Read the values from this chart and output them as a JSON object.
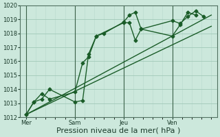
{
  "xlabel": "Pression niveau de la mer( hPa )",
  "bg_color": "#cce8dc",
  "grid_color_major": "#a0c8b8",
  "grid_color_minor": "#b8d8cc",
  "line_color": "#1a5c28",
  "vline_color": "#3a6048",
  "ylim": [
    1012,
    1020
  ],
  "yticks": [
    1012,
    1013,
    1014,
    1015,
    1016,
    1017,
    1018,
    1019,
    1020
  ],
  "day_labels": [
    "Mer",
    "Sam",
    "Jeu",
    "Ven"
  ],
  "day_positions": [
    0,
    2.5,
    5.0,
    7.5
  ],
  "xlim": [
    -0.3,
    9.8
  ],
  "series1_x": [
    0.0,
    0.4,
    0.8,
    1.2,
    2.5,
    2.9,
    3.2,
    3.6,
    5.0,
    5.3,
    5.6,
    5.9,
    7.5,
    7.9,
    8.3,
    8.7,
    9.1
  ],
  "series1_y": [
    1012.2,
    1013.1,
    1013.7,
    1013.3,
    1013.8,
    1015.9,
    1016.3,
    1017.8,
    1018.75,
    1018.75,
    1017.5,
    1018.3,
    1018.9,
    1018.7,
    1019.2,
    1019.6,
    1019.2
  ],
  "series2_x": [
    0.0,
    0.4,
    0.8,
    1.2,
    2.5,
    2.9,
    3.2,
    3.6,
    4.0,
    5.0,
    5.3,
    5.6,
    5.9,
    7.5,
    7.9,
    8.3,
    8.7
  ],
  "series2_y": [
    1012.2,
    1013.1,
    1013.3,
    1014.0,
    1013.1,
    1013.2,
    1016.5,
    1017.8,
    1018.0,
    1018.8,
    1019.3,
    1019.5,
    1018.3,
    1017.8,
    1018.6,
    1019.5,
    1019.3
  ],
  "series3_x": [
    0.0,
    9.5
  ],
  "series3_y": [
    1012.2,
    1019.3
  ],
  "series4_x": [
    0.0,
    9.5
  ],
  "series4_y": [
    1012.2,
    1018.5
  ],
  "marker": "D",
  "markersize": 2.5,
  "linewidth": 1.0,
  "tick_fontsize": 6,
  "xlabel_fontsize": 8
}
